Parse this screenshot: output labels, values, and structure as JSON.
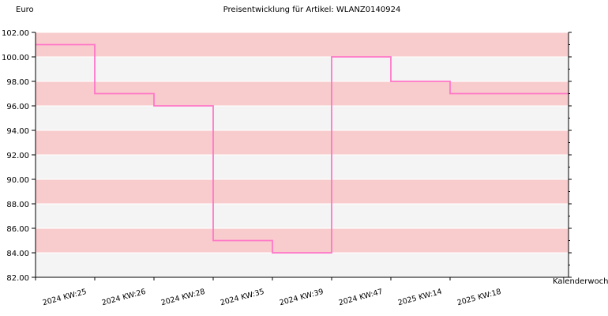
{
  "chart_data": {
    "type": "line",
    "step": true,
    "title": "Preisentwicklung für Artikel: WLANZ0140924",
    "ylabel": "Euro",
    "xlabel": "Kalenderwoche",
    "ylim": [
      82,
      102
    ],
    "ytick_step": 2,
    "ytick_labels": [
      "82.00",
      "84.00",
      "86.00",
      "88.00",
      "90.00",
      "92.00",
      "94.00",
      "96.00",
      "98.00",
      "100.00",
      "102.00"
    ],
    "categories": [
      "2024 KW:25",
      "2024 KW:26",
      "2024 KW:28",
      "2024 KW:35",
      "2024 KW:39",
      "2024 KW:47",
      "2025 KW:14",
      "2025 KW:18"
    ],
    "series": [
      {
        "values": [
          101,
          97,
          96,
          85,
          84,
          100,
          98,
          97
        ]
      }
    ],
    "grid": true,
    "colors": {
      "line": "#ff77c8",
      "band_dark": "#f8cccc",
      "band_light": "#f4f4f4",
      "axis": "#000000"
    }
  }
}
